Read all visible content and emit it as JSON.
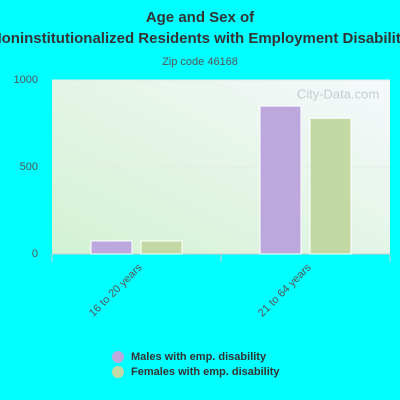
{
  "chart_data": {
    "type": "bar",
    "title": "Age and Sex of Noninstitutionalized Residents with Employment Disability",
    "subtitle": "Zip code 46168",
    "watermark": "City-Data.com",
    "categories": [
      "16 to 20 years",
      "21 to 64 years"
    ],
    "series": [
      {
        "name": "Males with emp. disability",
        "color": "#bca8dc",
        "values": [
          75,
          850
        ]
      },
      {
        "name": "Females with emp. disability",
        "color": "#c3d9a5",
        "values": [
          75,
          780
        ]
      }
    ],
    "ylim": [
      0,
      1000
    ],
    "yticks": [
      0,
      500,
      1000
    ],
    "grid": true
  }
}
